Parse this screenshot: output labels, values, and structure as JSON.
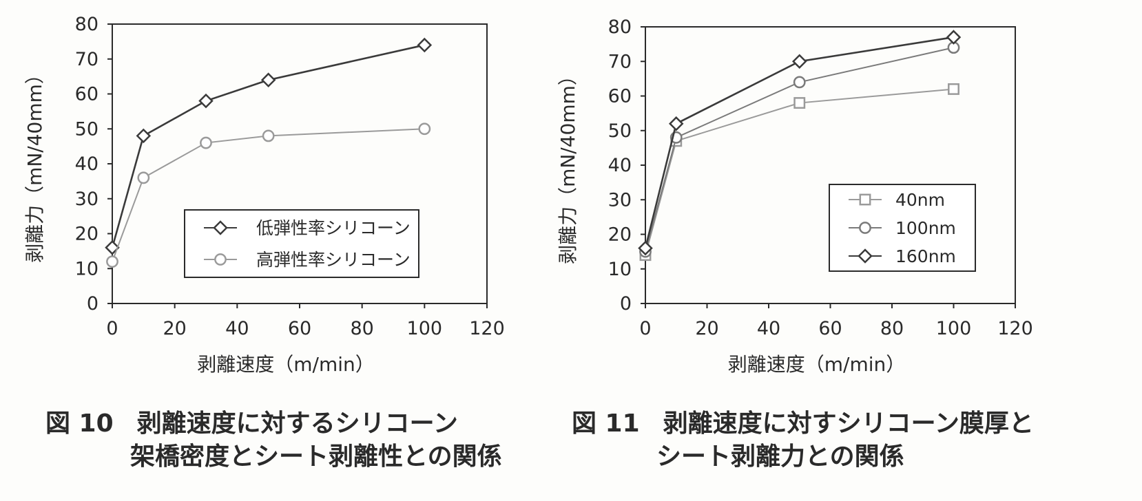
{
  "chart_data": [
    {
      "type": "line",
      "xlabel": "剥離速度（m/min）",
      "ylabel": "剥離力（mN/40mm）",
      "xlim": [
        0,
        120
      ],
      "ylim": [
        0,
        80
      ],
      "xticks": [
        "0",
        "20",
        "40",
        "60",
        "80",
        "100",
        "120"
      ],
      "yticks": [
        "0",
        "10",
        "20",
        "30",
        "40",
        "50",
        "60",
        "70",
        "80"
      ],
      "legend_position": "lower-right",
      "series": [
        {
          "name": "低弾性率シリコーン",
          "marker": "diamond",
          "color": "#3a3a3a",
          "x": [
            0,
            10,
            30,
            50,
            100
          ],
          "y": [
            16,
            48,
            58,
            64,
            74
          ]
        },
        {
          "name": "高弾性率シリコーン",
          "marker": "circle",
          "color": "#9a9a9a",
          "x": [
            0,
            10,
            30,
            50,
            100
          ],
          "y": [
            12,
            36,
            46,
            48,
            50
          ]
        }
      ],
      "caption_number": "図 10",
      "caption_line1": "剥離速度に対するシリコーン",
      "caption_line2": "架橋密度とシート剥離性との関係"
    },
    {
      "type": "line",
      "xlabel": "剥離速度（m/min）",
      "ylabel": "剥離力（mN/40mm）",
      "xlim": [
        0,
        120
      ],
      "ylim": [
        0,
        80
      ],
      "xticks": [
        "0",
        "20",
        "40",
        "60",
        "80",
        "100",
        "120"
      ],
      "yticks": [
        "0",
        "10",
        "20",
        "30",
        "40",
        "50",
        "60",
        "70",
        "80"
      ],
      "legend_position": "lower-right",
      "series": [
        {
          "name": "40nm",
          "marker": "square",
          "color": "#9a9a9a",
          "x": [
            0,
            10,
            50,
            100
          ],
          "y": [
            14,
            47,
            58,
            62
          ]
        },
        {
          "name": "100nm",
          "marker": "circle",
          "color": "#7a7a7a",
          "x": [
            0,
            10,
            50,
            100
          ],
          "y": [
            15,
            48,
            64,
            74
          ]
        },
        {
          "name": "160nm",
          "marker": "diamond",
          "color": "#3a3a3a",
          "x": [
            0,
            10,
            50,
            100
          ],
          "y": [
            16,
            52,
            70,
            77
          ]
        }
      ],
      "caption_number": "図 11",
      "caption_line1": "剥離速度に対すシリコーン膜厚と",
      "caption_line2": "シート剥離力との関係"
    }
  ]
}
